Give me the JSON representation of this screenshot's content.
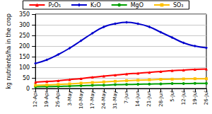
{
  "chart_data": {
    "type": "line",
    "y_label": "kg nutrients/ha in the crop",
    "categories": [
      "12-Apr",
      "19-Apr",
      "26-Apr",
      "3-May",
      "10-May",
      "17-May",
      "24-May",
      "31-May",
      "7-Jun",
      "14-Jun",
      "21-Jun",
      "28-Jun",
      "5-Jul",
      "12-Jul",
      "19-Jul",
      "26-Jul"
    ],
    "series": [
      {
        "name": "P₂O₅",
        "color": "#ff0000",
        "marker": "triangle",
        "values": [
          30,
          33,
          37,
          42,
          47,
          53,
          58,
          63,
          68,
          72,
          76,
          80,
          84,
          87,
          90,
          92
        ]
      },
      {
        "name": "K₂O",
        "color": "#0000cc",
        "marker": "diamond",
        "values": [
          118,
          135,
          160,
          190,
          225,
          260,
          290,
          305,
          312,
          305,
          290,
          265,
          240,
          215,
          200,
          192
        ]
      },
      {
        "name": "MgO",
        "color": "#00a000",
        "marker": "circle",
        "values": [
          8,
          9,
          10,
          12,
          13,
          15,
          16,
          18,
          19,
          20,
          21,
          22,
          23,
          23,
          24,
          24
        ]
      },
      {
        "name": "SO₃",
        "color": "#ffc000",
        "marker": "rect",
        "values": [
          15,
          17,
          19,
          22,
          25,
          28,
          31,
          34,
          37,
          39,
          41,
          43,
          44,
          45,
          46,
          46
        ]
      }
    ],
    "ylim": [
      0,
      350
    ],
    "yticks": [
      0,
      50,
      100,
      150,
      200,
      250,
      300,
      350
    ],
    "grid": true,
    "legend": "top"
  }
}
